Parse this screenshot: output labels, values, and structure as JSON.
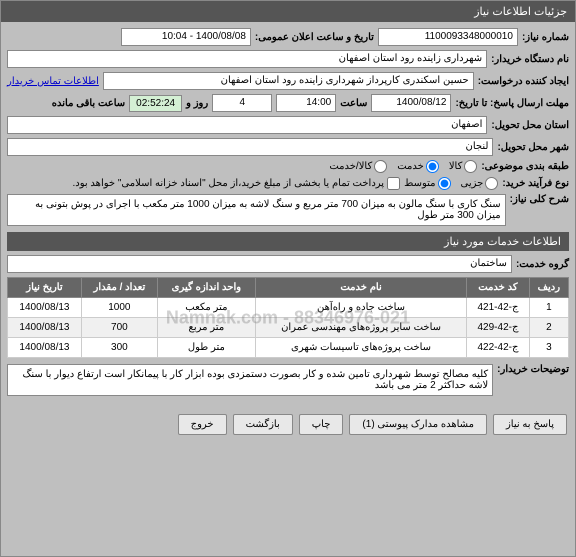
{
  "titlebar": "جزئیات اطلاعات نیاز",
  "fields": {
    "need_number_label": "شماره نیاز:",
    "need_number_value": "1100093348000010",
    "announce_label": "تاریخ و ساعت اعلان عمومی:",
    "announce_value": "1400/08/08 - 10:04",
    "org_label": "نام دستگاه خریدار:",
    "org_value": "شهرداری زاینده رود استان اصفهان",
    "requester_label": "ایجاد کننده درخواست:",
    "requester_value": "حسین  اسکندری  کارپرداز شهرداری زاینده رود استان اصفهان",
    "contact_link": "اطلاعات تماس خریدار",
    "deadline_label": "مهلت ارسال پاسخ: تا تاریخ:",
    "deadline_date": "1400/08/12",
    "time_label": "ساعت",
    "deadline_time": "14:00",
    "days_value": "4",
    "days_label": "روز و",
    "timer_value": "02:52:24",
    "remaining_label": "ساعت باقی مانده",
    "province_label": "استان محل تحویل:",
    "province_value": "اصفهان",
    "city_label": "شهر محل تحویل:",
    "city_value": "لنجان",
    "category_label": "طبقه بندی موضوعی:",
    "kala": "کالا",
    "khadamat": "خدمت",
    "kala_khadamat": "کالا/خدمت",
    "purchase_type_label": "نوع فرآیند خرید:",
    "jozei": "جزیی",
    "motevaset": "متوسط",
    "treasury_note": "پرداخت تمام یا بخشی از مبلغ خرید،از محل \"اسناد خزانه اسلامی\" خواهد بود.",
    "key_label": "شرح کلی نیاز:",
    "key_value": "سنگ کاری با سنگ مالون به میزان 700 متر مربع و سنگ لاشه به میزان 1000 متر مکعب با اجرای در پوش بتونی به میزان 300 متر طول",
    "services_header": "اطلاعات خدمات مورد نیاز",
    "service_group_label": "گروه خدمت:",
    "service_group_value": "ساختمان",
    "buyer_notes_label": "توضیحات خریدار:",
    "buyer_notes_value": "کلیه مصالح توسط شهرداری تامین شده و کار بصورت دستمزدی بوده ابزار کار با پیمانکار است ارتفاع دیوار با سنگ لاشه حداکثر 2 متر می باشد"
  },
  "table": {
    "headers": {
      "row": "ردیف",
      "code": "کد خدمت",
      "name": "نام خدمت",
      "unit": "واحد اندازه گیری",
      "qty": "تعداد / مقدار",
      "date": "تاریخ نیاز"
    },
    "rows": [
      {
        "n": "1",
        "code": "ج-42-421",
        "name": "ساخت جاده و راه‌آهن",
        "unit": "متر مکعب",
        "qty": "1000",
        "date": "1400/08/13"
      },
      {
        "n": "2",
        "code": "ج-42-429",
        "name": "ساخت سایر پروژه‌های مهندسی عمران",
        "unit": "متر مربع",
        "qty": "700",
        "date": "1400/08/13"
      },
      {
        "n": "3",
        "code": "ج-42-422",
        "name": "ساخت پروژه‌های تاسیسات شهری",
        "unit": "متر طول",
        "qty": "300",
        "date": "1400/08/13"
      }
    ]
  },
  "watermark": "Namnak.com - 88346976-021",
  "buttons": {
    "respond": "پاسخ به نیاز",
    "attachments": "مشاهده مدارک پیوستی (1)",
    "print": "چاپ",
    "back": "بازگشت",
    "exit": "خروج"
  }
}
